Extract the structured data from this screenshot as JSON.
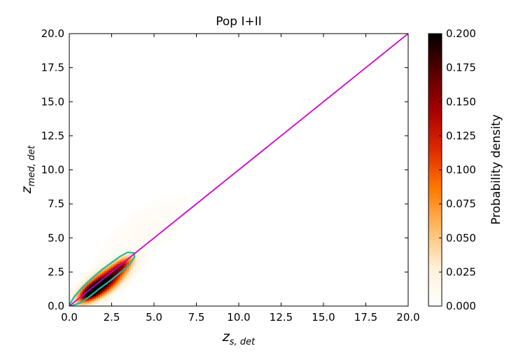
{
  "chart_data": {
    "type": "heatmap",
    "title": "Pop I+II",
    "xlabel": "z_{s,det}",
    "ylabel": "z_{med,det}",
    "xlim": [
      0,
      20
    ],
    "ylim": [
      0,
      20
    ],
    "x_ticks": [
      "0.0",
      "2.5",
      "5.0",
      "7.5",
      "10.0",
      "12.5",
      "15.0",
      "17.5",
      "20.0"
    ],
    "y_ticks": [
      "0.0",
      "2.5",
      "5.0",
      "7.5",
      "10.0",
      "12.5",
      "15.0",
      "17.5",
      "20.0"
    ],
    "reference_line": {
      "from": [
        0,
        0
      ],
      "to": [
        20,
        20
      ],
      "color": "#cc00cc"
    },
    "density_contour": {
      "color": "#1fb8a8",
      "outline": [
        [
          0.05,
          0.0
        ],
        [
          0.6,
          0.2
        ],
        [
          1.2,
          0.7
        ],
        [
          1.8,
          1.3
        ],
        [
          2.5,
          1.95
        ],
        [
          3.1,
          2.55
        ],
        [
          3.55,
          3.05
        ],
        [
          3.85,
          3.6
        ],
        [
          3.8,
          3.9
        ],
        [
          3.45,
          3.95
        ],
        [
          3.0,
          3.65
        ],
        [
          2.45,
          3.15
        ],
        [
          1.9,
          2.65
        ],
        [
          1.3,
          2.0
        ],
        [
          0.75,
          1.35
        ],
        [
          0.3,
          0.7
        ],
        [
          0.0,
          0.1
        ]
      ]
    },
    "density_blobs": [
      {
        "x": 2.0,
        "y": 1.7,
        "sx": 1.1,
        "sy": 0.75,
        "peak": 0.2
      },
      {
        "x": 1.3,
        "y": 1.1,
        "sx": 0.55,
        "sy": 0.45,
        "peak": 0.16
      },
      {
        "x": 3.1,
        "y": 3.0,
        "sx": 0.6,
        "sy": 0.45,
        "peak": 0.09
      },
      {
        "x": 4.5,
        "y": 5.5,
        "sx": 2.5,
        "sy": 1.8,
        "peak": 0.008
      }
    ],
    "colorbar": {
      "label": "Probability density",
      "range": [
        0,
        0.2
      ],
      "ticks": [
        "0.000",
        "0.025",
        "0.050",
        "0.075",
        "0.100",
        "0.125",
        "0.150",
        "0.175",
        "0.200"
      ],
      "colors": [
        "#ffffff",
        "#fff0d6",
        "#ffbb66",
        "#ff7a00",
        "#e02a00",
        "#a80000",
        "#5a0000",
        "#000000"
      ]
    },
    "grid": false
  }
}
